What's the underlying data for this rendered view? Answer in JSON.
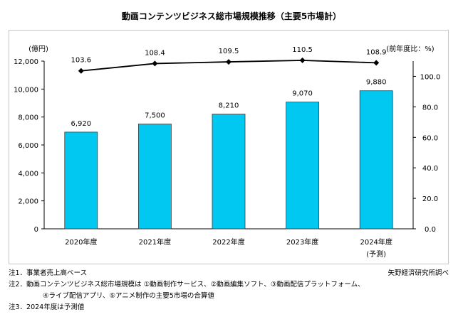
{
  "title": "動画コンテンツビジネス総市場規模推移（主要5市場計）",
  "chart_data": {
    "type": "bar",
    "categories": [
      "2020年度",
      "2021年度",
      "2022年度",
      "2023年度",
      "2024年度"
    ],
    "category_sublabels": [
      "",
      "",
      "",
      "",
      "(予測)"
    ],
    "series": [
      {
        "name": "",
        "type": "bar",
        "axis": "left",
        "values": [
          6920,
          7500,
          8210,
          9070,
          9880
        ],
        "labels": [
          "6,920",
          "7,500",
          "8,210",
          "9,070",
          "9,880"
        ]
      },
      {
        "name": "",
        "type": "line",
        "axis": "right",
        "values": [
          103.6,
          108.4,
          109.5,
          110.5,
          108.9
        ],
        "labels": [
          "103.6",
          "108.4",
          "109.5",
          "110.5",
          "108.9"
        ]
      }
    ],
    "y_left": {
      "label": "(億円)",
      "ylim": [
        0,
        12000
      ],
      "ticks": [
        "0",
        "2,000",
        "4,000",
        "6,000",
        "8,000",
        "10,000",
        "12,000"
      ]
    },
    "y_right": {
      "label": "(前年度比：%)",
      "ylim": [
        0,
        110
      ],
      "ticks": [
        "0.0",
        "20.0",
        "40.0",
        "60.0",
        "80.0",
        "100.0"
      ]
    },
    "grid": false,
    "bar_color": "#00c8f0",
    "line_color": "#000000"
  },
  "notes": [
    "注1．事業者売上高ベース",
    "注2．動画コンテンツビジネス総市場規模は ①動画制作サービス、②動画編集ソフト、③動画配信プラットフォーム、",
    "④ライブ配信アプリ、⑤アニメ制作の主要5市場の合算値",
    "注3．2024年度は予測値"
  ],
  "source": "矢野経済研究所調べ"
}
